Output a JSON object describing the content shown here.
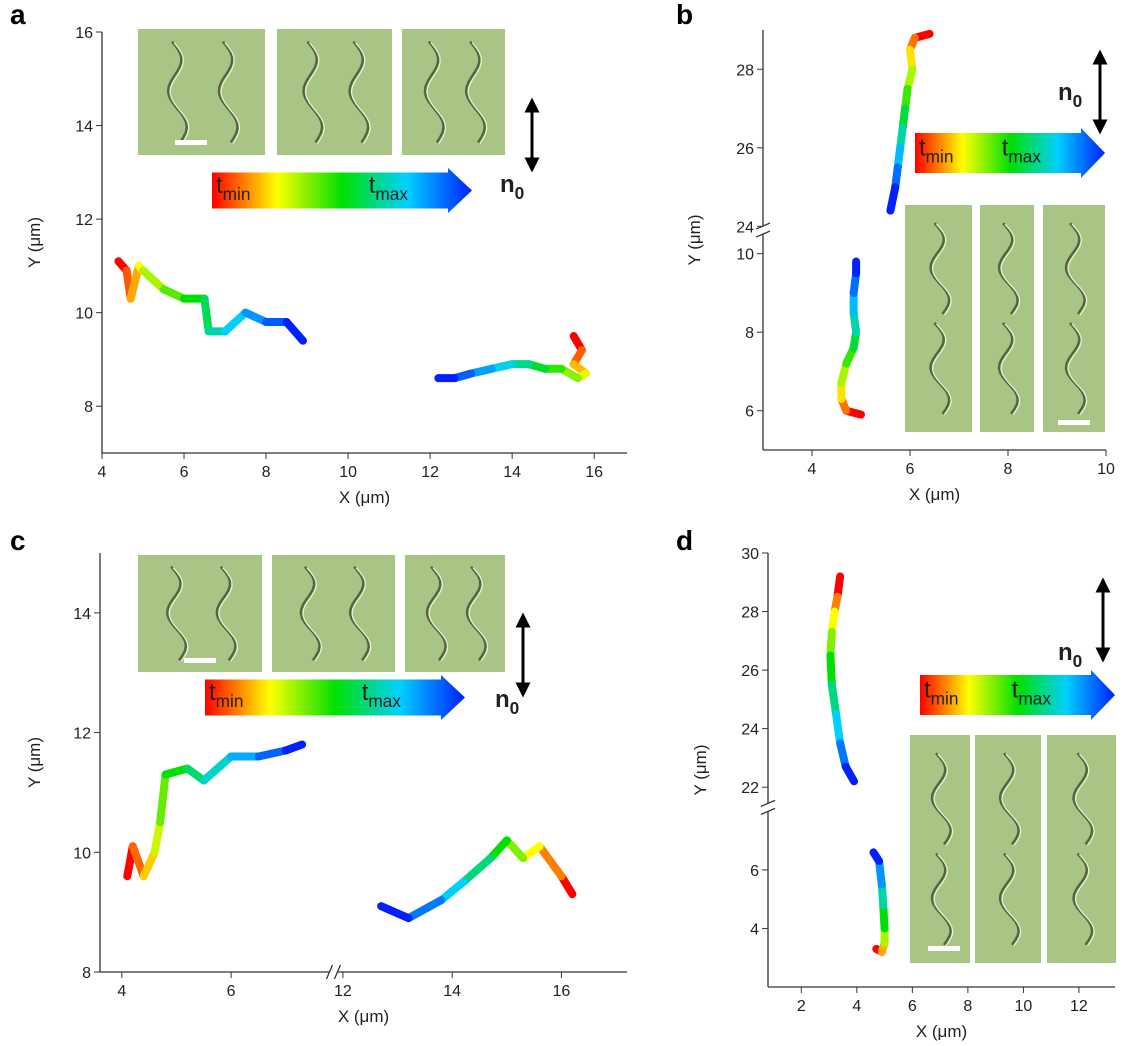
{
  "chart_data": [
    {
      "type": "line",
      "label": "a",
      "xlabel": "X (μm)",
      "ylabel": "Y (μm)",
      "xlim": [
        4,
        16.8
      ],
      "xticks": [
        4,
        6,
        8,
        10,
        12,
        14,
        16
      ],
      "ylim": [
        7,
        16
      ],
      "yticks": [
        8,
        10,
        12,
        14,
        16
      ],
      "colormap": [
        "#ff0000",
        "#ffff00",
        "#00e000",
        "#00d0ff",
        "#0020ff"
      ],
      "time_arrow": {
        "start": [
          "t",
          "min"
        ],
        "end": [
          "t",
          "max"
        ]
      },
      "director": [
        "n",
        "0"
      ],
      "series": [
        {
          "x": [
            4.4,
            4.6,
            4.7,
            4.9,
            5.0,
            5.5,
            6.0,
            6.5,
            6.6,
            7.0,
            7.5,
            8.0,
            8.5,
            8.9
          ],
          "values": [
            11.1,
            10.9,
            10.3,
            11.0,
            10.9,
            10.5,
            10.3,
            10.3,
            9.6,
            9.6,
            10.0,
            9.8,
            9.8,
            9.4
          ]
        },
        {
          "x": [
            15.5,
            15.7,
            15.5,
            15.8,
            15.6,
            15.2,
            14.8,
            14.4,
            14.0,
            13.5,
            13.0,
            12.6,
            12.2
          ],
          "values": [
            9.5,
            9.2,
            8.9,
            8.7,
            8.6,
            8.8,
            8.8,
            8.9,
            8.9,
            8.8,
            8.7,
            8.6,
            8.6
          ]
        }
      ]
    },
    {
      "type": "line",
      "label": "b",
      "xlabel": "X (μm)",
      "ylabel": "Y (μm)",
      "xlim": [
        3,
        10
      ],
      "xticks": [
        4,
        6,
        8,
        10
      ],
      "ylim": [
        5,
        29
      ],
      "ybreak": [
        10.5,
        23.6
      ],
      "yticks": [
        6,
        8,
        10,
        24,
        26,
        28
      ],
      "colormap": [
        "#ff0000",
        "#ffff00",
        "#00e000",
        "#00d0ff",
        "#0020ff"
      ],
      "time_arrow": {
        "start": [
          "t",
          "min"
        ],
        "end": [
          "t",
          "max"
        ]
      },
      "director": [
        "n",
        "0"
      ],
      "series": [
        {
          "x": [
            6.4,
            6.1,
            6.0,
            6.05,
            5.95,
            5.9,
            5.85,
            5.8,
            5.75,
            5.7,
            5.6
          ],
          "values": [
            28.9,
            28.8,
            28.5,
            28.0,
            27.5,
            27.0,
            26.5,
            26.0,
            25.5,
            25.0,
            24.4
          ]
        },
        {
          "x": [
            5.0,
            4.7,
            4.6,
            4.6,
            4.7,
            4.85,
            4.9,
            4.85,
            4.85,
            4.9,
            4.9
          ],
          "values": [
            5.9,
            6.0,
            6.3,
            6.7,
            7.2,
            7.6,
            8.0,
            8.5,
            9.0,
            9.5,
            9.8
          ]
        }
      ]
    },
    {
      "type": "line",
      "label": "c",
      "xlabel": "X (μm)",
      "ylabel": "Y (μm)",
      "xlim": [
        3.6,
        17.2
      ],
      "xbreak": [
        7.8,
        11.9
      ],
      "xticks": [
        4,
        6,
        12,
        14,
        16
      ],
      "ylim": [
        8,
        15
      ],
      "yticks": [
        8,
        10,
        12,
        14
      ],
      "colormap": [
        "#ff0000",
        "#ffff00",
        "#00e000",
        "#00d0ff",
        "#0020ff"
      ],
      "time_arrow": {
        "start": [
          "t",
          "min"
        ],
        "end": [
          "t",
          "max"
        ]
      },
      "director": [
        "n",
        "0"
      ],
      "series": [
        {
          "x": [
            4.1,
            4.2,
            4.4,
            4.6,
            4.7,
            4.8,
            5.2,
            5.5,
            6.0,
            6.5,
            7.0,
            7.3
          ],
          "values": [
            9.6,
            10.1,
            9.6,
            10.0,
            10.5,
            11.3,
            11.4,
            11.2,
            11.6,
            11.6,
            11.7,
            11.8
          ]
        },
        {
          "x": [
            16.2,
            16.0,
            15.6,
            15.3,
            15.0,
            14.7,
            14.2,
            13.8,
            13.2,
            12.7
          ],
          "values": [
            9.3,
            9.6,
            10.1,
            9.9,
            10.2,
            9.9,
            9.5,
            9.2,
            8.9,
            9.1
          ]
        }
      ]
    },
    {
      "type": "line",
      "label": "d",
      "xlabel": "X (μm)",
      "ylabel": "Y (μm)",
      "xlim": [
        0.8,
        13.3
      ],
      "xticks": [
        2,
        4,
        6,
        8,
        10,
        12
      ],
      "ylim": [
        2,
        30
      ],
      "ybreak": [
        8.0,
        20.9
      ],
      "yticks": [
        4,
        6,
        22,
        24,
        26,
        28,
        30
      ],
      "colormap": [
        "#ff0000",
        "#ffff00",
        "#00e000",
        "#00d0ff",
        "#0020ff"
      ],
      "time_arrow": {
        "start": [
          "t",
          "min"
        ],
        "end": [
          "t",
          "max"
        ]
      },
      "director": [
        "n",
        "0"
      ],
      "series": [
        {
          "x": [
            3.4,
            3.3,
            3.2,
            3.1,
            3.05,
            3.1,
            3.25,
            3.4,
            3.6,
            3.9
          ],
          "values": [
            29.2,
            28.5,
            28.0,
            27.3,
            26.5,
            25.5,
            24.5,
            23.5,
            22.7,
            22.2
          ]
        },
        {
          "x": [
            4.7,
            4.9,
            5.0,
            5.0,
            4.95,
            4.9,
            4.8,
            4.6
          ],
          "values": [
            3.3,
            3.2,
            3.5,
            4.0,
            4.8,
            5.5,
            6.3,
            6.6
          ]
        }
      ]
    }
  ]
}
